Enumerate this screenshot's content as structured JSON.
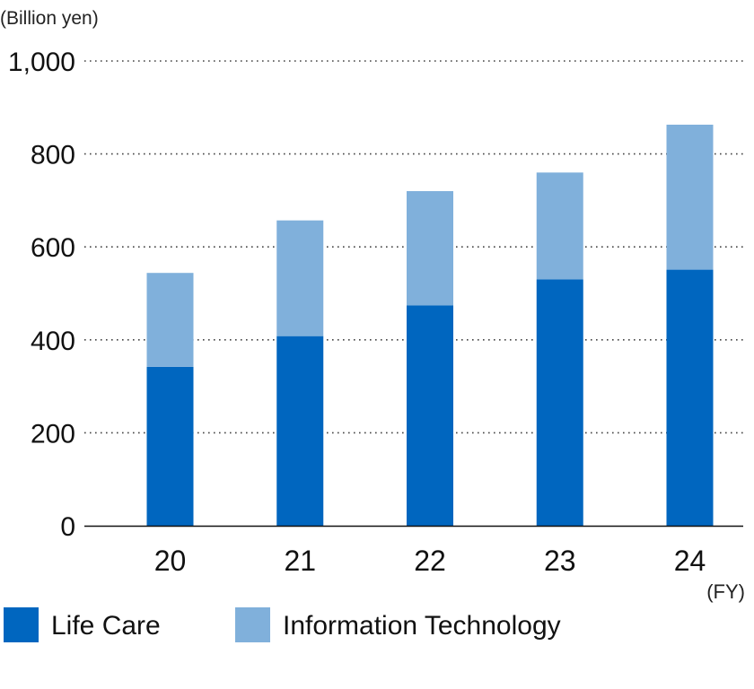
{
  "chart_data": {
    "type": "bar",
    "stacked": true,
    "title": "",
    "ylabel": "(Billion yen)",
    "xlabel": "(FY)",
    "categories": [
      "20",
      "21",
      "22",
      "23",
      "24"
    ],
    "ylim": [
      0,
      1000
    ],
    "yticks": [
      0,
      200,
      400,
      600,
      800,
      1000
    ],
    "ytick_labels": [
      "0",
      "200",
      "400",
      "600",
      "800",
      "1,000"
    ],
    "grid": true,
    "legend_position": "bottom",
    "series": [
      {
        "name": "Life Care",
        "color": "#0066bf",
        "values": [
          342,
          408,
          474,
          530,
          551
        ]
      },
      {
        "name": "Information Technology",
        "color": "#80b0db",
        "values": [
          202,
          249,
          246,
          230,
          312
        ]
      }
    ]
  }
}
